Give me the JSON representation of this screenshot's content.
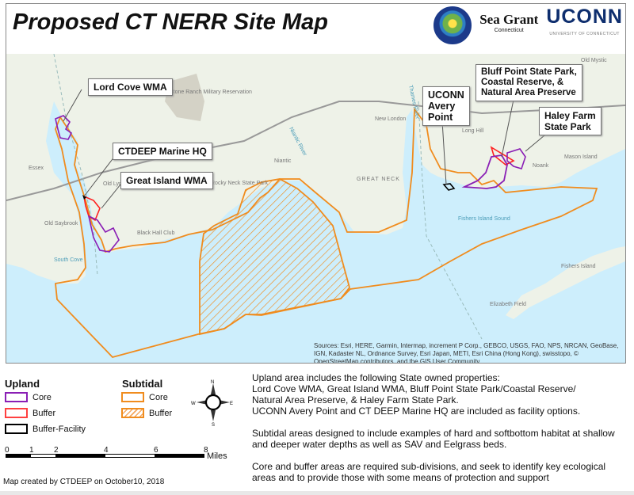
{
  "header": {
    "title": "Proposed CT NERR Site Map",
    "logos": [
      {
        "name": "Connecticut Energy & Environmental Protection seal",
        "text": "CONNECTICUT ENERGY & ENVIRONMENT"
      },
      {
        "name": "Sea Grant Connecticut",
        "text": "Sea Grant",
        "subtext": "Connecticut"
      },
      {
        "name": "UConn",
        "text": "UCONN",
        "subtext": "UNIVERSITY OF CONNECTICUT"
      }
    ]
  },
  "map": {
    "callouts": [
      {
        "id": "lord-cove",
        "text": "Lord Cove WMA"
      },
      {
        "id": "ctdeep-hq",
        "text": "CTDEEP Marine HQ"
      },
      {
        "id": "great-island",
        "text": "Great Island WMA"
      },
      {
        "id": "uconn-avery",
        "lines": [
          "UCONN",
          "Avery",
          "Point"
        ]
      },
      {
        "id": "bluff-point",
        "lines": [
          "Bluff Point State Park,",
          "Coastal Reserve, &",
          "Natural Area Preserve"
        ]
      },
      {
        "id": "haley-farm",
        "lines": [
          "Haley Farm",
          "State Park"
        ]
      }
    ],
    "place_labels": [
      "Essex",
      "Stone Ranch Military Reservation",
      "Old Lyme",
      "Old Saybrook",
      "Black Hall Club",
      "Rocky Neck State Park",
      "Niantic",
      "GREAT NECK",
      "New London",
      "Long Hill",
      "Noank",
      "Mason Island",
      "Old Mystic",
      "Fishers Island",
      "Elizabeth Field"
    ],
    "water_labels": [
      "South Cove",
      "Fishers Island Sound",
      "Thames River",
      "Niantic River"
    ],
    "sources": "Sources: Esri, HERE, Garmin, Intermap, increment P Corp., GEBCO, USGS, FAO, NPS, NRCAN, GeoBase, IGN, Kadaster NL, Ordnance Survey, Esri Japan, METI, Esri China (Hong Kong), swisstopo, © OpenStreetMap contributors, and the GIS User Community",
    "colors": {
      "land": "#eef2e8",
      "water": "#cdeefc",
      "upland_core": "#8a1fb5",
      "upland_buffer": "#ff2020",
      "buffer_facility": "#000000",
      "subtidal": "#f08c1e"
    }
  },
  "legend": {
    "upland": {
      "heading": "Upland",
      "items": [
        {
          "label": "Core",
          "color": "#8a1fb5"
        },
        {
          "label": "Buffer",
          "color": "#ff2020"
        },
        {
          "label": "Buffer-Facility",
          "color": "#000000"
        }
      ]
    },
    "subtidal": {
      "heading": "Subtidal",
      "items": [
        {
          "label": "Core",
          "color": "#f08c1e",
          "pattern": "solid"
        },
        {
          "label": "Buffer",
          "color": "#f08c1e",
          "pattern": "hatched"
        }
      ]
    },
    "compass": {
      "n": "N",
      "e": "E",
      "s": "S",
      "w": "W"
    },
    "scale": {
      "ticks": [
        "0",
        "1",
        "2",
        "4",
        "6",
        "8"
      ],
      "unit": "Miles"
    }
  },
  "notes": {
    "p1": [
      "Upland area includes the following State owned properties:",
      "Lord Cove WMA, Great Island WMA, Bluff Point State Park/Coastal Reserve/",
      "Natural Area Preserve, & Haley Farm State Park.",
      "UCONN Avery Point and CT DEEP Marine HQ are included as facility options."
    ],
    "p2": "Subtidal areas designed to include examples of hard and softbottom habitat at shallow and deeper water depths as well as SAV and Eelgrass beds.",
    "p3": "Core and buffer areas are required sub-divisions, and seek to identify key ecological areas and to provide those with some means of protection and support"
  },
  "credit": "Map created by CTDEEP on October10, 2018"
}
